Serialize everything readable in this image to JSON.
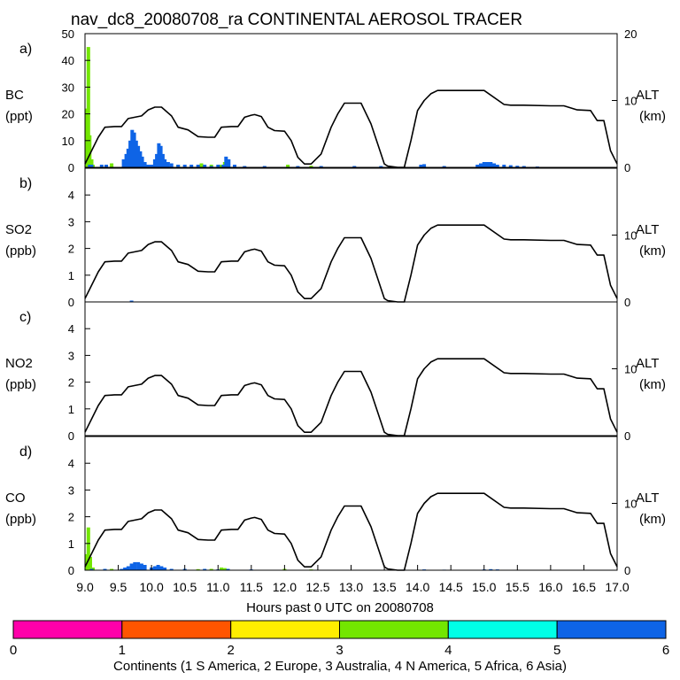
{
  "chart_data": {
    "type": "line",
    "title": "nav_dc8_20080708_ra CONTINENTAL AEROSOL TRACER",
    "xlabel": "Hours past 0 UTC on 20080708",
    "xlim": [
      9.0,
      17.0
    ],
    "x_ticks": [
      "9.0",
      "9.5",
      "10.0",
      "10.5",
      "11.0",
      "11.5",
      "12.0",
      "12.5",
      "13.0",
      "13.5",
      "14.0",
      "14.5",
      "15.0",
      "15.5",
      "16.0",
      "16.5",
      "17.0"
    ],
    "altitude": {
      "label": "ALT",
      "units": "(km)",
      "ylim": [
        0,
        20
      ],
      "ticks": [
        "0",
        "10",
        "20"
      ],
      "x": [
        9.0,
        9.1,
        9.2,
        9.3,
        9.45,
        9.55,
        9.65,
        9.75,
        9.85,
        9.95,
        10.05,
        10.15,
        10.3,
        10.4,
        10.55,
        10.7,
        10.85,
        10.95,
        11.05,
        11.2,
        11.3,
        11.4,
        11.5,
        11.55,
        11.65,
        11.75,
        11.85,
        12.0,
        12.1,
        12.2,
        12.3,
        12.4,
        12.55,
        12.7,
        12.8,
        12.9,
        13.0,
        13.05,
        13.15,
        13.3,
        13.4,
        13.5,
        13.55,
        13.7,
        13.8,
        13.9,
        14.0,
        14.1,
        14.2,
        14.3,
        14.4,
        14.5,
        14.6,
        15.0,
        15.3,
        15.4,
        15.5,
        15.6,
        16.0,
        16.1,
        16.2,
        16.4,
        16.6,
        16.7,
        16.8,
        16.9,
        17.0
      ],
      "values": [
        0.5,
        2.5,
        4.5,
        6.0,
        6.1,
        6.1,
        7.3,
        7.5,
        7.7,
        8.6,
        9.0,
        9.0,
        7.7,
        6.0,
        5.6,
        4.6,
        4.5,
        4.5,
        6.0,
        6.1,
        6.1,
        7.5,
        7.8,
        7.9,
        7.6,
        6.0,
        5.5,
        5.4,
        4.0,
        1.5,
        0.5,
        0.5,
        2.0,
        6.0,
        8.0,
        9.6,
        9.6,
        9.6,
        9.6,
        6.5,
        3.5,
        0.5,
        0.2,
        0.0,
        0.0,
        4.0,
        8.5,
        10.0,
        11.0,
        11.5,
        11.5,
        11.5,
        11.5,
        11.5,
        9.4,
        9.3,
        9.3,
        9.3,
        9.2,
        9.2,
        9.2,
        8.6,
        8.5,
        7.0,
        7.0,
        2.5,
        0.5
      ]
    },
    "panels": [
      {
        "label": "a)",
        "species": "BC",
        "units": "(ppt)",
        "ylim": [
          0,
          50
        ],
        "y_ticks": [
          "0",
          "10",
          "20",
          "30",
          "40",
          "50"
        ],
        "series": [
          {
            "name": "N America",
            "continent": 4,
            "color": "#73e600",
            "x": [
              9.02,
              9.05,
              9.07,
              9.1,
              9.12,
              9.4,
              10.1,
              10.4,
              10.75,
              10.9,
              11.05,
              11.1,
              11.15,
              12.05,
              12.4
            ],
            "values": [
              22,
              45,
              12,
              3,
              1,
              1.5,
              1.5,
              1,
              1.5,
              1,
              1,
              2,
              1.5,
              1,
              0.6
            ]
          },
          {
            "name": "Asia",
            "continent": 6,
            "color": "#0e64e6",
            "x": [
              9.07,
              9.1,
              9.25,
              9.32,
              9.58,
              9.62,
              9.65,
              9.68,
              9.71,
              9.74,
              9.77,
              9.8,
              9.83,
              9.86,
              9.9,
              9.95,
              10.0,
              10.05,
              10.08,
              10.11,
              10.14,
              10.17,
              10.2,
              10.25,
              10.3,
              10.4,
              10.5,
              10.6,
              10.7,
              10.8,
              10.9,
              11.0,
              11.08,
              11.12,
              11.16,
              11.25,
              11.4,
              11.7,
              12.2,
              12.55,
              13.05,
              13.45,
              14.05,
              14.1,
              14.4,
              14.9,
              14.95,
              15.0,
              15.05,
              15.1,
              15.15,
              15.2,
              15.3,
              15.4,
              15.5,
              15.6,
              15.8
            ],
            "values": [
              1,
              1,
              1,
              1,
              3,
              5,
              7,
              10,
              14,
              13,
              10,
              8,
              6,
              4,
              2,
              1,
              1,
              3,
              5,
              9,
              8,
              5,
              3,
              2,
              1.5,
              1,
              1,
              1,
              1,
              1,
              0.5,
              1,
              1,
              4,
              3,
              1,
              0.5,
              0.5,
              0.5,
              0.5,
              0.5,
              0.5,
              1,
              1.2,
              0.5,
              1,
              1.5,
              2,
              2,
              2,
              1.5,
              1,
              1,
              0.8,
              0.6,
              0.5,
              0.3
            ]
          }
        ]
      },
      {
        "label": "b)",
        "species": "SO2",
        "units": "(ppb)",
        "ylim": [
          0,
          5
        ],
        "y_ticks": [
          "0",
          "1",
          "2",
          "3",
          "4"
        ],
        "series": [
          {
            "name": "Asia",
            "continent": 6,
            "color": "#0e64e6",
            "x": [
              9.7
            ],
            "values": [
              0.05
            ]
          }
        ]
      },
      {
        "label": "c)",
        "species": "NO2",
        "units": "(ppb)",
        "ylim": [
          0,
          5
        ],
        "y_ticks": [
          "0",
          "1",
          "2",
          "3",
          "4"
        ],
        "series": []
      },
      {
        "label": "d)",
        "species": "CO",
        "units": "(ppb)",
        "ylim": [
          0,
          5
        ],
        "y_ticks": [
          "0",
          "1",
          "2",
          "3",
          "4"
        ],
        "series": [
          {
            "name": "N America",
            "continent": 4,
            "color": "#73e600",
            "x": [
              9.02,
              9.05,
              9.08,
              9.12,
              9.4,
              10.2,
              10.7,
              10.9,
              11.05,
              11.1,
              12.0,
              12.4
            ],
            "values": [
              0.6,
              1.6,
              0.5,
              0.1,
              0.05,
              0.04,
              0.04,
              0.05,
              0.1,
              0.08,
              0.05,
              0.03
            ]
          },
          {
            "name": "Asia",
            "continent": 6,
            "color": "#0e64e6",
            "x": [
              9.1,
              9.3,
              9.55,
              9.6,
              9.65,
              9.7,
              9.75,
              9.8,
              9.85,
              9.9,
              10.0,
              10.05,
              10.1,
              10.15,
              10.2,
              10.3,
              10.5,
              10.8,
              11.0,
              11.15,
              11.5,
              13.8,
              14.1,
              14.4,
              15.0,
              15.1,
              15.2
            ],
            "values": [
              0.05,
              0.05,
              0.05,
              0.1,
              0.15,
              0.25,
              0.3,
              0.3,
              0.25,
              0.2,
              0.1,
              0.15,
              0.2,
              0.15,
              0.1,
              0.05,
              0.05,
              0.05,
              0.03,
              0.05,
              0.03,
              0.02,
              0.03,
              0.02,
              0.03,
              0.04,
              0.03
            ]
          }
        ]
      }
    ],
    "colorbar": {
      "label": "Continents (1 S America, 2 Europe, 3 Australia, 4 N America, 5 Africa, 6 Asia)",
      "ticks": [
        "0",
        "1",
        "2",
        "3",
        "4",
        "5",
        "6"
      ],
      "colors": [
        "#ff00aa",
        "#ff5500",
        "#ffee00",
        "#73e600",
        "#00ffe6",
        "#0e64e6"
      ]
    }
  }
}
